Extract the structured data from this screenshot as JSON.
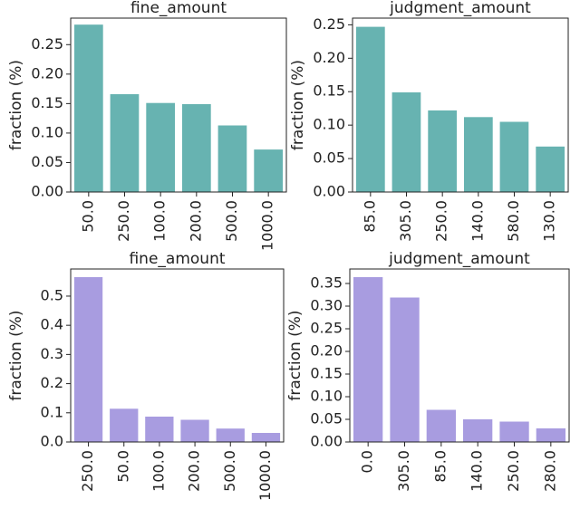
{
  "chart_data": [
    {
      "type": "bar",
      "title": "fine_amount",
      "ylabel": "fraction (%)",
      "categories": [
        "50.0",
        "250.0",
        "100.0",
        "200.0",
        "500.0",
        "1000.0"
      ],
      "values": [
        0.284,
        0.166,
        0.151,
        0.149,
        0.113,
        0.072
      ],
      "ylim": [
        0,
        0.295
      ],
      "yticks": [
        "0.00",
        "0.05",
        "0.10",
        "0.15",
        "0.20",
        "0.25"
      ],
      "color": "#67b3b1"
    },
    {
      "type": "bar",
      "title": "judgment_amount",
      "ylabel": "fraction (%)",
      "categories": [
        "85.0",
        "305.0",
        "250.0",
        "140.0",
        "580.0",
        "130.0"
      ],
      "values": [
        0.247,
        0.149,
        0.122,
        0.112,
        0.105,
        0.068
      ],
      "ylim": [
        0,
        0.26
      ],
      "yticks": [
        "0.00",
        "0.05",
        "0.10",
        "0.15",
        "0.20",
        "0.25"
      ],
      "color": "#67b3b1"
    },
    {
      "type": "bar",
      "title": "fine_amount",
      "ylabel": "fraction (%)",
      "categories": [
        "250.0",
        "50.0",
        "100.0",
        "200.0",
        "500.0",
        "1000.0"
      ],
      "values": [
        0.565,
        0.114,
        0.087,
        0.076,
        0.046,
        0.031
      ],
      "ylim": [
        0,
        0.593
      ],
      "yticks": [
        "0.0",
        "0.1",
        "0.2",
        "0.3",
        "0.4",
        "0.5"
      ],
      "color": "#a89ce0"
    },
    {
      "type": "bar",
      "title": "judgment_amount",
      "ylabel": "fraction (%)",
      "categories": [
        "0.0",
        "305.0",
        "85.0",
        "140.0",
        "250.0",
        "280.0"
      ],
      "values": [
        0.364,
        0.319,
        0.071,
        0.05,
        0.045,
        0.03
      ],
      "ylim": [
        0,
        0.382
      ],
      "yticks": [
        "0.00",
        "0.05",
        "0.10",
        "0.15",
        "0.20",
        "0.25",
        "0.30",
        "0.35"
      ],
      "color": "#a89ce0"
    }
  ]
}
